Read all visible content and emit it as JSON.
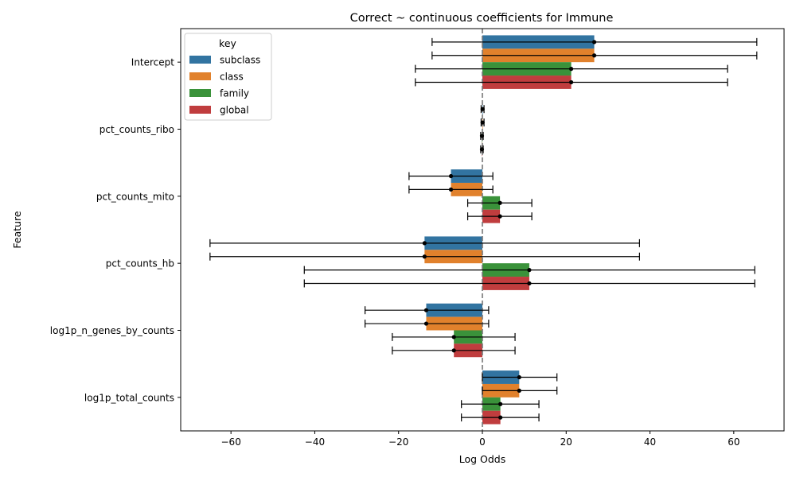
{
  "chart_data": {
    "type": "bar",
    "orientation": "horizontal",
    "title": "Correct ~ continuous coefficients for Immune",
    "xlabel": "Log Odds",
    "ylabel": "Feature",
    "xlim": [
      -72,
      72
    ],
    "xticks": [
      -60,
      -40,
      -20,
      0,
      20,
      40,
      60
    ],
    "xtick_labels": [
      "−60",
      "−40",
      "−20",
      "0",
      "20",
      "40",
      "60"
    ],
    "reference_line": 0,
    "grid": false,
    "legend": {
      "title": "key",
      "position": "top-left"
    },
    "categories": [
      "Intercept",
      "pct_counts_ribo",
      "pct_counts_mito",
      "pct_counts_hb",
      "log1p_n_genes_by_counts",
      "log1p_total_counts"
    ],
    "series": [
      {
        "name": "subclass",
        "color": "#3274a1",
        "values": [
          26.7,
          0.05,
          -7.5,
          -13.8,
          -13.4,
          8.8
        ],
        "ci_low": [
          -12.0,
          -0.3,
          -17.5,
          -65.0,
          -28.0,
          0.0
        ],
        "ci_high": [
          65.5,
          0.4,
          2.5,
          37.5,
          1.5,
          17.8
        ]
      },
      {
        "name": "class",
        "color": "#e1812c",
        "values": [
          26.7,
          0.05,
          -7.5,
          -13.8,
          -13.4,
          8.8
        ],
        "ci_low": [
          -12.0,
          -0.3,
          -17.5,
          -65.0,
          -28.0,
          0.0
        ],
        "ci_high": [
          65.5,
          0.4,
          2.5,
          37.5,
          1.5,
          17.8
        ]
      },
      {
        "name": "family",
        "color": "#3a923a",
        "values": [
          21.2,
          -0.1,
          4.2,
          11.2,
          -6.8,
          4.3
        ],
        "ci_low": [
          -16.0,
          -0.4,
          -3.5,
          -42.5,
          -21.5,
          -5.0
        ],
        "ci_high": [
          58.5,
          0.2,
          11.8,
          65.0,
          7.8,
          13.5
        ]
      },
      {
        "name": "global",
        "color": "#c03d3e",
        "values": [
          21.2,
          -0.1,
          4.2,
          11.2,
          -6.8,
          4.3
        ],
        "ci_low": [
          -16.0,
          -0.4,
          -3.5,
          -42.5,
          -21.5,
          -5.0
        ],
        "ci_high": [
          58.5,
          0.2,
          11.8,
          65.0,
          7.8,
          13.5
        ]
      }
    ]
  }
}
